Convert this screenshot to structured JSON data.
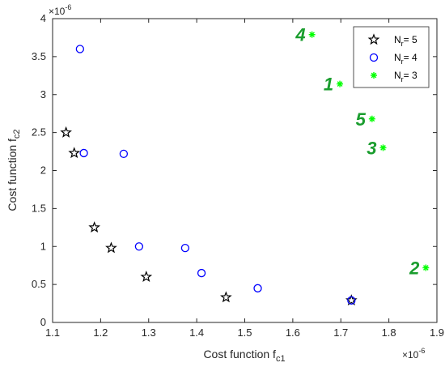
{
  "chart_data": {
    "type": "scatter",
    "xlabel": "Cost function f",
    "xlabel_sub": "c1",
    "ylabel": "Cost function f",
    "ylabel_sub": "c2",
    "x_exponent": "×10",
    "x_exponent_power": "-6",
    "y_exponent": "×10",
    "y_exponent_power": "-6",
    "xlim": [
      1.1,
      1.9
    ],
    "ylim": [
      0,
      4
    ],
    "x_ticks": [
      "1.1",
      "1.2",
      "1.3",
      "1.4",
      "1.5",
      "1.6",
      "1.7",
      "1.8",
      "1.9"
    ],
    "y_ticks": [
      "0",
      "0.5",
      "1",
      "1.5",
      "2",
      "2.5",
      "3",
      "3.5",
      "4"
    ],
    "grid": false,
    "legend_position": "top-right",
    "series": [
      {
        "name": "N",
        "name_sub": "r",
        "name_suffix": "= 5",
        "marker": "pentagram",
        "color": "#000000",
        "points": [
          {
            "x": 1.128,
            "y": 2.5
          },
          {
            "x": 1.145,
            "y": 2.23
          },
          {
            "x": 1.187,
            "y": 1.25
          },
          {
            "x": 1.222,
            "y": 0.98
          },
          {
            "x": 1.295,
            "y": 0.6
          },
          {
            "x": 1.461,
            "y": 0.33
          },
          {
            "x": 1.722,
            "y": 0.29
          }
        ]
      },
      {
        "name": "N",
        "name_sub": "r",
        "name_suffix": "= 4",
        "marker": "circle",
        "color": "#0000ff",
        "points": [
          {
            "x": 1.157,
            "y": 3.6
          },
          {
            "x": 1.165,
            "y": 2.23
          },
          {
            "x": 1.248,
            "y": 2.22
          },
          {
            "x": 1.28,
            "y": 1.0
          },
          {
            "x": 1.376,
            "y": 0.98
          },
          {
            "x": 1.41,
            "y": 0.65
          },
          {
            "x": 1.527,
            "y": 0.45
          },
          {
            "x": 1.722,
            "y": 0.29
          }
        ]
      },
      {
        "name": "N",
        "name_sub": "r",
        "name_suffix": "= 3",
        "marker": "asterisk",
        "color": "#00ff00",
        "points": [
          {
            "x": 1.64,
            "y": 3.79,
            "label": "4"
          },
          {
            "x": 1.698,
            "y": 3.14,
            "label": "1"
          },
          {
            "x": 1.765,
            "y": 2.68,
            "label": "5"
          },
          {
            "x": 1.788,
            "y": 2.3,
            "label": "3"
          },
          {
            "x": 1.877,
            "y": 0.72,
            "label": "2"
          }
        ]
      }
    ],
    "annotation_color": "#1a9d2e"
  }
}
